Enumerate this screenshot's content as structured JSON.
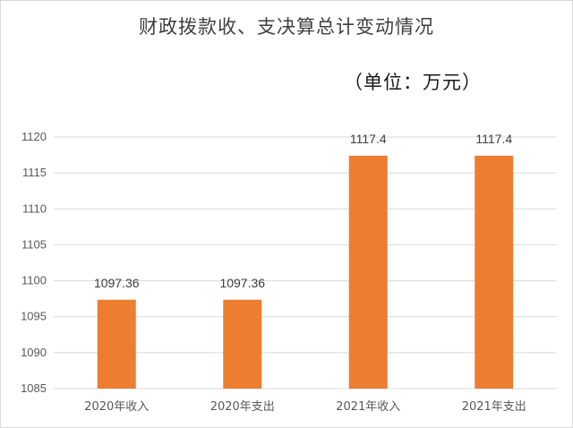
{
  "chart_data": {
    "type": "bar",
    "title": "财政拨款收、支决算总计变动情况",
    "subtitle": "（单位：万元）",
    "categories": [
      "2020年收入",
      "2020年支出",
      "2021年收入",
      "2021年支出"
    ],
    "values": [
      1097.36,
      1097.36,
      1117.4,
      1117.4
    ],
    "data_labels": [
      "1097.36",
      "1097.36",
      "1117.4",
      "1117.4"
    ],
    "ylim": [
      1085,
      1120
    ],
    "yticks": [
      "1085",
      "1090",
      "1095",
      "1100",
      "1105",
      "1110",
      "1115",
      "1120"
    ],
    "xlabel": "",
    "ylabel": "",
    "grid": true,
    "legend": "none",
    "bar_color": "#ED7D31",
    "grid_color": "#D9D9D9"
  }
}
